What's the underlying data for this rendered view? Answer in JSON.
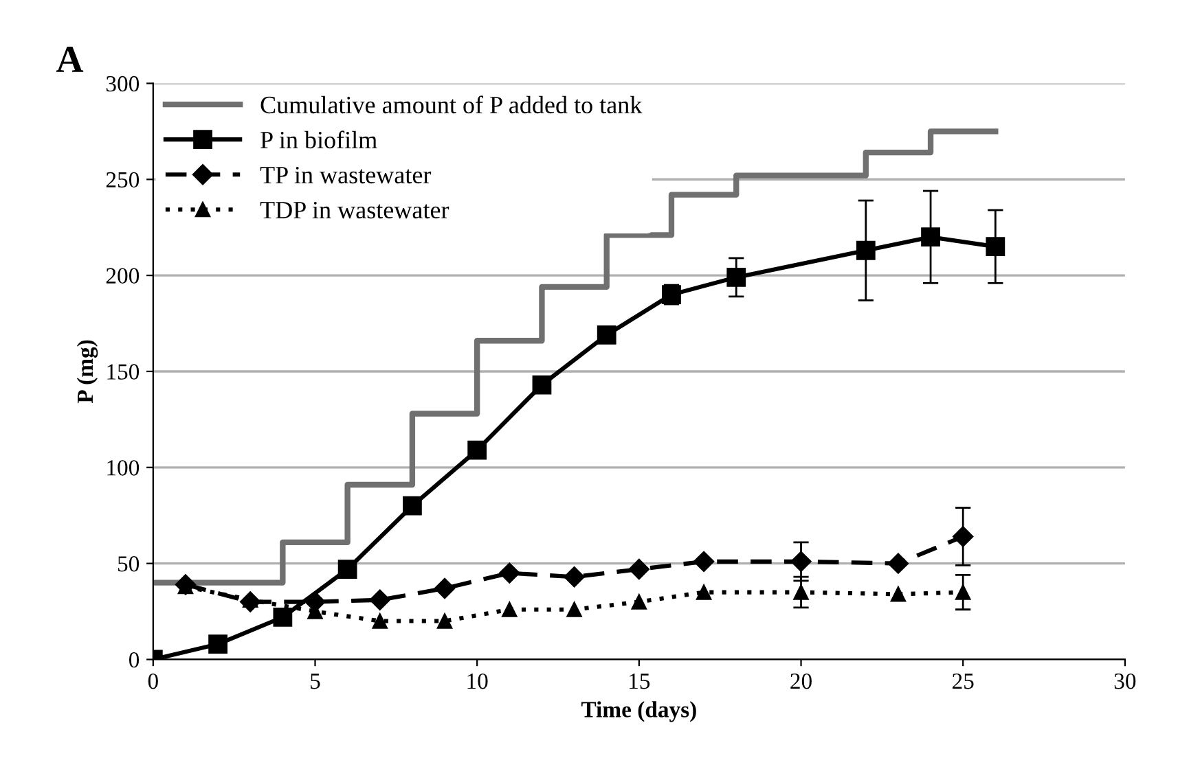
{
  "chart_data": {
    "type": "line",
    "title": "A",
    "xlabel": "Time (days)",
    "ylabel": "P (mg)",
    "xlim": [
      0,
      30
    ],
    "xticks": [
      0,
      5,
      10,
      15,
      20,
      25,
      30
    ],
    "ylim": [
      0,
      300
    ],
    "yticks": [
      0,
      50,
      100,
      150,
      200,
      250,
      300
    ],
    "grid": "y",
    "legend": "top left",
    "series": [
      {
        "name": "Cumulative amount of P added to tank",
        "type": "step",
        "color": "#707070",
        "line_style": "solid",
        "marker": "none",
        "x": [
          0,
          4,
          6,
          8,
          10,
          12,
          14,
          16,
          18,
          22,
          24,
          26
        ],
        "values": [
          40,
          61,
          91,
          128,
          166,
          194,
          221,
          242,
          252,
          264,
          275,
          275
        ]
      },
      {
        "name": "P in biofilm",
        "color": "#000000",
        "line_style": "solid",
        "marker": "square",
        "x": [
          0,
          2,
          4,
          6,
          8,
          10,
          12,
          14,
          16,
          18,
          22,
          24,
          26
        ],
        "values": [
          0,
          8,
          22,
          47,
          80,
          109,
          143,
          169,
          190,
          199,
          213,
          220,
          215
        ],
        "errors": [
          null,
          null,
          null,
          null,
          null,
          null,
          null,
          null,
          5,
          10,
          26,
          24,
          19
        ]
      },
      {
        "name": "TP in wastewater",
        "color": "#000000",
        "line_style": "dashed",
        "marker": "diamond",
        "x": [
          1,
          3,
          5,
          7,
          9,
          11,
          13,
          15,
          17,
          20,
          23,
          25
        ],
        "values": [
          39,
          30,
          30,
          31,
          37,
          45,
          43,
          47,
          51,
          51,
          50,
          64
        ],
        "errors": [
          null,
          null,
          null,
          null,
          null,
          null,
          null,
          null,
          null,
          10,
          null,
          15
        ]
      },
      {
        "name": "TDP in wastewater",
        "color": "#000000",
        "line_style": "dotted",
        "marker": "triangle",
        "x": [
          1,
          3,
          5,
          7,
          9,
          11,
          13,
          15,
          17,
          20,
          23,
          25
        ],
        "values": [
          38,
          31,
          25,
          20,
          20,
          26,
          26,
          30,
          35,
          35,
          34,
          35
        ],
        "errors": [
          null,
          null,
          null,
          null,
          null,
          null,
          null,
          null,
          null,
          8,
          null,
          9
        ]
      }
    ]
  }
}
